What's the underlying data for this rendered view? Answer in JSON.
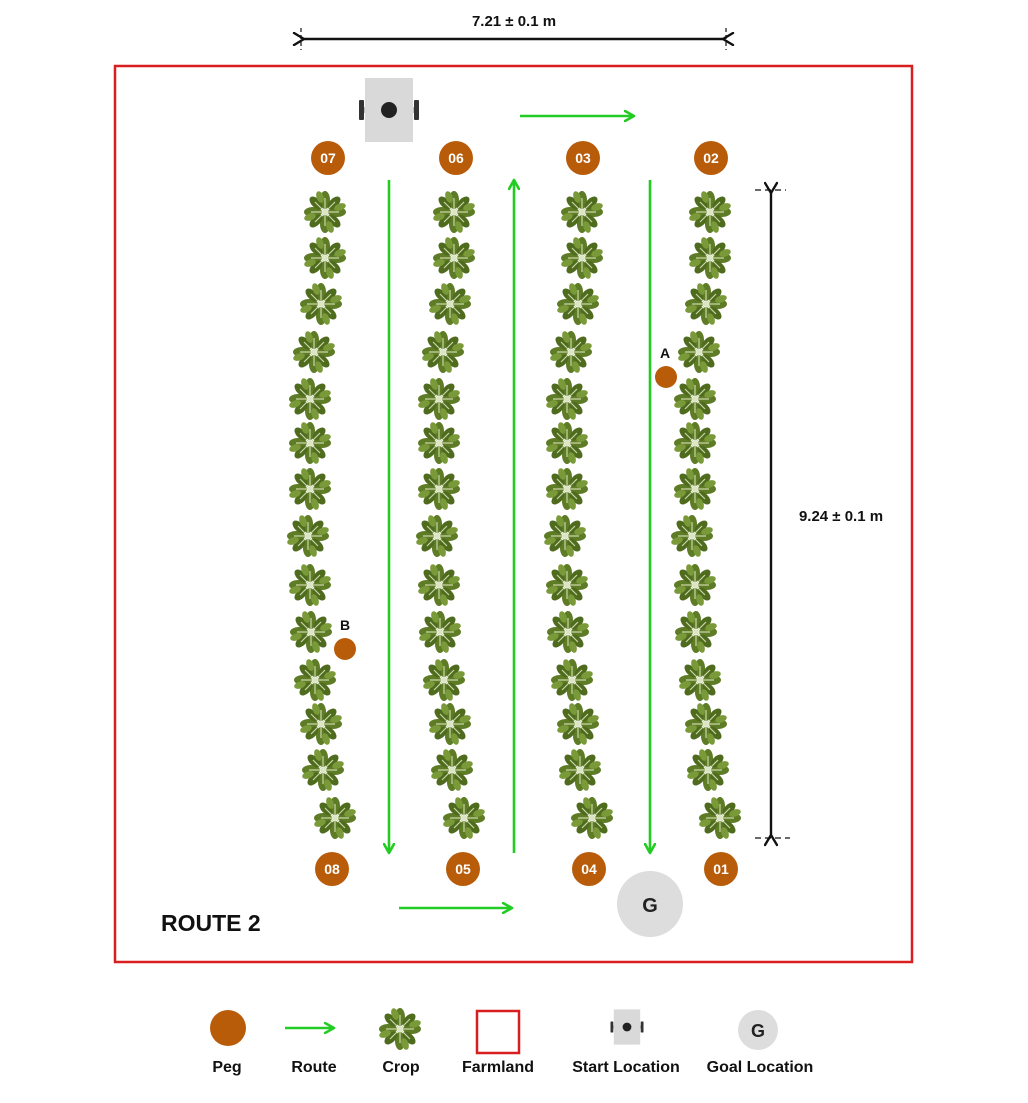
{
  "route_title": "ROUTE 2",
  "dimensions": {
    "width_label": "7.21 ± 0.1 m",
    "height_label": "9.24 ± 0.1 m"
  },
  "pegs_top": [
    "07",
    "06",
    "03",
    "02"
  ],
  "pegs_bottom": [
    "08",
    "05",
    "04",
    "01"
  ],
  "markers": [
    {
      "label": "A"
    },
    {
      "label": "B"
    }
  ],
  "goal": {
    "label": "G"
  },
  "legend": {
    "peg": "Peg",
    "route": "Route",
    "crop": "Crop",
    "farmland": "Farmland",
    "start": "Start Location",
    "goal": "Goal Location",
    "goal_icon_label": "G"
  },
  "colors": {
    "peg": "#B85C0A",
    "route": "#22CC22",
    "farmland": "#D81E1E",
    "crop_dark": "#4F6B1E",
    "crop_light": "#7A9A3A",
    "goal_fill": "#DDDDDD",
    "robot_body": "#D9D9D9"
  },
  "icons": {
    "crop": "plant-icon",
    "start": "robot-icon",
    "goal": "goal-icon",
    "peg": "peg-icon",
    "route": "arrow-icon"
  }
}
